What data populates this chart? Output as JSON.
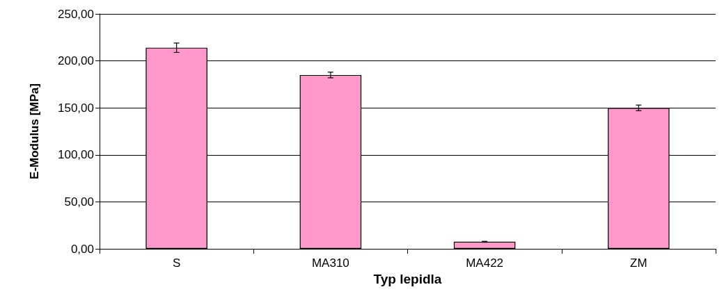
{
  "chart_data": {
    "type": "bar",
    "xlabel": "Typ lepidla",
    "ylabel": "E-Modulus [MPa]",
    "categories": [
      "S",
      "MA310",
      "MA422",
      "ZM"
    ],
    "values": [
      214,
      185,
      7.5,
      150
    ],
    "errors": [
      5,
      3,
      0.5,
      3
    ],
    "color": "#ff99cc",
    "ylim": [
      0,
      250
    ],
    "yticks": [
      {
        "value": 0,
        "label": "0,00"
      },
      {
        "value": 50,
        "label": "50,00"
      },
      {
        "value": 100,
        "label": "100,00"
      },
      {
        "value": 150,
        "label": "150,00"
      },
      {
        "value": 200,
        "label": "200,00"
      },
      {
        "value": 250,
        "label": "250,00"
      }
    ],
    "grid": "y"
  }
}
